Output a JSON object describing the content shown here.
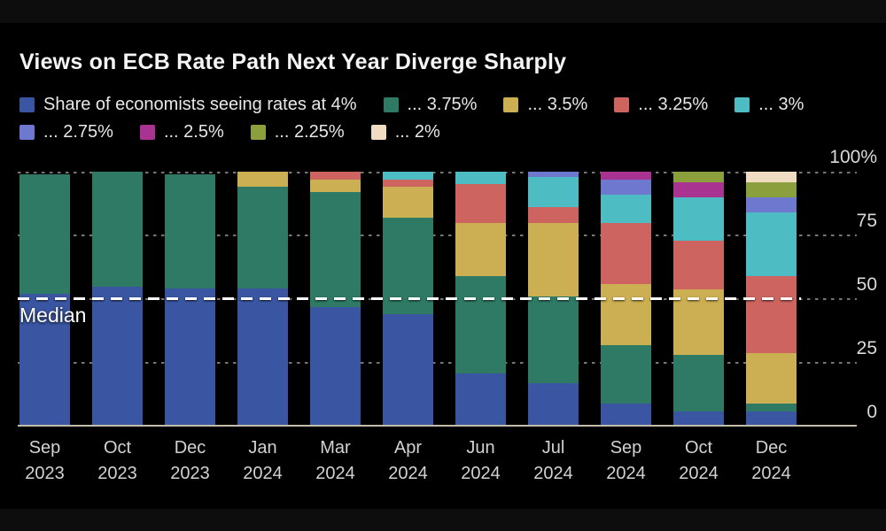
{
  "chart_data": {
    "type": "bar",
    "stacked": true,
    "title": "Views on ECB Rate Path Next Year Diverge Sharply",
    "categories": [
      {
        "month": "Sep",
        "year": "2023"
      },
      {
        "month": "Oct",
        "year": "2023"
      },
      {
        "month": "Dec",
        "year": "2023"
      },
      {
        "month": "Jan",
        "year": "2024"
      },
      {
        "month": "Mar",
        "year": "2024"
      },
      {
        "month": "Apr",
        "year": "2024"
      },
      {
        "month": "Jun",
        "year": "2024"
      },
      {
        "month": "Jul",
        "year": "2024"
      },
      {
        "month": "Sep",
        "year": "2024"
      },
      {
        "month": "Oct",
        "year": "2024"
      },
      {
        "month": "Dec",
        "year": "2024"
      }
    ],
    "series": [
      {
        "name": "4%",
        "legend_label": "Share of economists seeing rates at 4%",
        "color": "#3a56a2",
        "values": [
          52,
          55,
          54,
          54,
          47,
          44,
          21,
          17,
          9,
          6,
          6
        ]
      },
      {
        "name": "3.75%",
        "legend_label": "... 3.75%",
        "color": "#2e7a64",
        "values": [
          47,
          45,
          45,
          40,
          45,
          38,
          38,
          34,
          23,
          22,
          3
        ]
      },
      {
        "name": "3.5%",
        "legend_label": "... 3.5%",
        "color": "#ccaf53",
        "values": [
          0,
          0,
          0,
          6,
          5,
          12,
          21,
          29,
          24,
          26,
          20
        ]
      },
      {
        "name": "3.25%",
        "legend_label": "... 3.25%",
        "color": "#cd645f",
        "values": [
          0,
          0,
          0,
          0,
          3,
          3,
          15,
          6,
          24,
          19,
          30
        ]
      },
      {
        "name": "3%",
        "legend_label": "... 3%",
        "color": "#4dbcc3",
        "values": [
          0,
          0,
          0,
          0,
          0,
          3,
          5,
          12,
          11,
          17,
          25
        ]
      },
      {
        "name": "2.75%",
        "legend_label": "... 2.75%",
        "color": "#6f78cf",
        "values": [
          0,
          0,
          0,
          0,
          0,
          0,
          0,
          2,
          6,
          0,
          6
        ]
      },
      {
        "name": "2.5%",
        "legend_label": "... 2.5%",
        "color": "#a83390",
        "values": [
          0,
          0,
          0,
          0,
          0,
          0,
          0,
          0,
          3,
          6,
          0
        ]
      },
      {
        "name": "2.25%",
        "legend_label": "... 2.25%",
        "color": "#8ba03c",
        "values": [
          0,
          0,
          0,
          0,
          0,
          0,
          0,
          0,
          0,
          4,
          6
        ]
      },
      {
        "name": "2%",
        "legend_label": "... 2%",
        "color": "#efdcc2",
        "values": [
          0,
          0,
          0,
          0,
          0,
          0,
          0,
          0,
          0,
          0,
          4
        ]
      }
    ],
    "y_axis": {
      "range": [
        0,
        100
      ],
      "ticks": [
        {
          "label": "100%",
          "value": 100
        },
        {
          "label": "75",
          "value": 75
        },
        {
          "label": "50",
          "value": 50
        },
        {
          "label": "25",
          "value": 25
        },
        {
          "label": "0",
          "value": 0
        }
      ]
    },
    "median_line": {
      "label": "Median",
      "value": 50
    },
    "legend_rows": [
      5,
      4
    ],
    "legend_position": "top",
    "grid": "dotted-horizontal",
    "colors": {
      "background": "#000000",
      "letterbox": "#0d0d0d",
      "axis_line": "#c2bcac",
      "median": "#ffffff",
      "title_text": "#f5f5f5",
      "legend_text": "#e8e8e6",
      "axis_text": "#dadada"
    }
  }
}
